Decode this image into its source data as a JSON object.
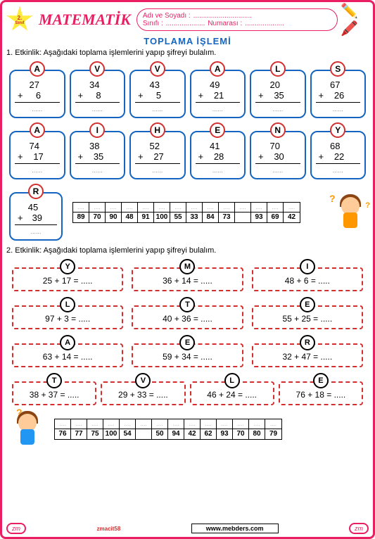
{
  "header": {
    "grade_num": "2.",
    "grade_label": "Sınıf",
    "title": "MATEMATİK",
    "name_label": "Adı ve Soyadı :",
    "class_label": "Sınıfı :",
    "number_label": "Numarası :",
    "dots": "..............................",
    "dots2": "....................",
    "dots3": "...................."
  },
  "main_title": "TOPLAMA  İŞLEMİ",
  "activity1": {
    "instruction": "1. Etkinlik: Aşağıdaki toplama işlemlerini yapıp şifreyi bulalım.",
    "problems": [
      {
        "l": "A",
        "a": "27",
        "b": "6"
      },
      {
        "l": "V",
        "a": "34",
        "b": "8"
      },
      {
        "l": "V",
        "a": "43",
        "b": "5"
      },
      {
        "l": "A",
        "a": "49",
        "b": "21"
      },
      {
        "l": "L",
        "a": "20",
        "b": "35"
      },
      {
        "l": "S",
        "a": "67",
        "b": "26"
      },
      {
        "l": "A",
        "a": "74",
        "b": "17"
      },
      {
        "l": "I",
        "a": "38",
        "b": "35"
      },
      {
        "l": "H",
        "a": "52",
        "b": "27"
      },
      {
        "l": "E",
        "a": "41",
        "b": "28"
      },
      {
        "l": "N",
        "a": "70",
        "b": "30"
      },
      {
        "l": "Y",
        "a": "68",
        "b": "22"
      },
      {
        "l": "R",
        "a": "45",
        "b": "39"
      }
    ],
    "answer_cells": [
      "89",
      "70",
      "90",
      "48",
      "91",
      "100",
      "55",
      "33",
      "84",
      "73",
      "",
      "93",
      "69",
      "42"
    ]
  },
  "activity2": {
    "instruction": "2. Etkinlik: Aşağıdaki toplama işlemlerini yapıp şifreyi bulalım.",
    "problems": [
      {
        "l": "Y",
        "e": "25 + 17 = ....."
      },
      {
        "l": "M",
        "e": "36 + 14 = ....."
      },
      {
        "l": "I",
        "e": "48 + 6 = ....."
      },
      {
        "l": "L",
        "e": "97 + 3 = ....."
      },
      {
        "l": "T",
        "e": "40 + 36 = ....."
      },
      {
        "l": "E",
        "e": "55 + 25 = ....."
      },
      {
        "l": "A",
        "e": "63 + 14 = ....."
      },
      {
        "l": "E",
        "e": "59 + 34 = ....."
      },
      {
        "l": "R",
        "e": "32 + 47 = ....."
      }
    ],
    "problems_r4": [
      {
        "l": "T",
        "e": "38 + 37 = ....."
      },
      {
        "l": "V",
        "e": "29 + 33 = ....."
      },
      {
        "l": "L",
        "e": "46 + 24 = ....."
      },
      {
        "l": "E",
        "e": "76 + 18 = ....."
      }
    ],
    "answer_cells": [
      "76",
      "77",
      "75",
      "100",
      "54",
      "",
      "50",
      "94",
      "42",
      "62",
      "93",
      "70",
      "80",
      "79"
    ]
  },
  "footer": {
    "zm": "zm",
    "credit": "zmacit58",
    "site": "www.mebders.com"
  },
  "colors": {
    "pink": "#e91e63",
    "red": "#d32f2f",
    "blue": "#1565c0"
  }
}
